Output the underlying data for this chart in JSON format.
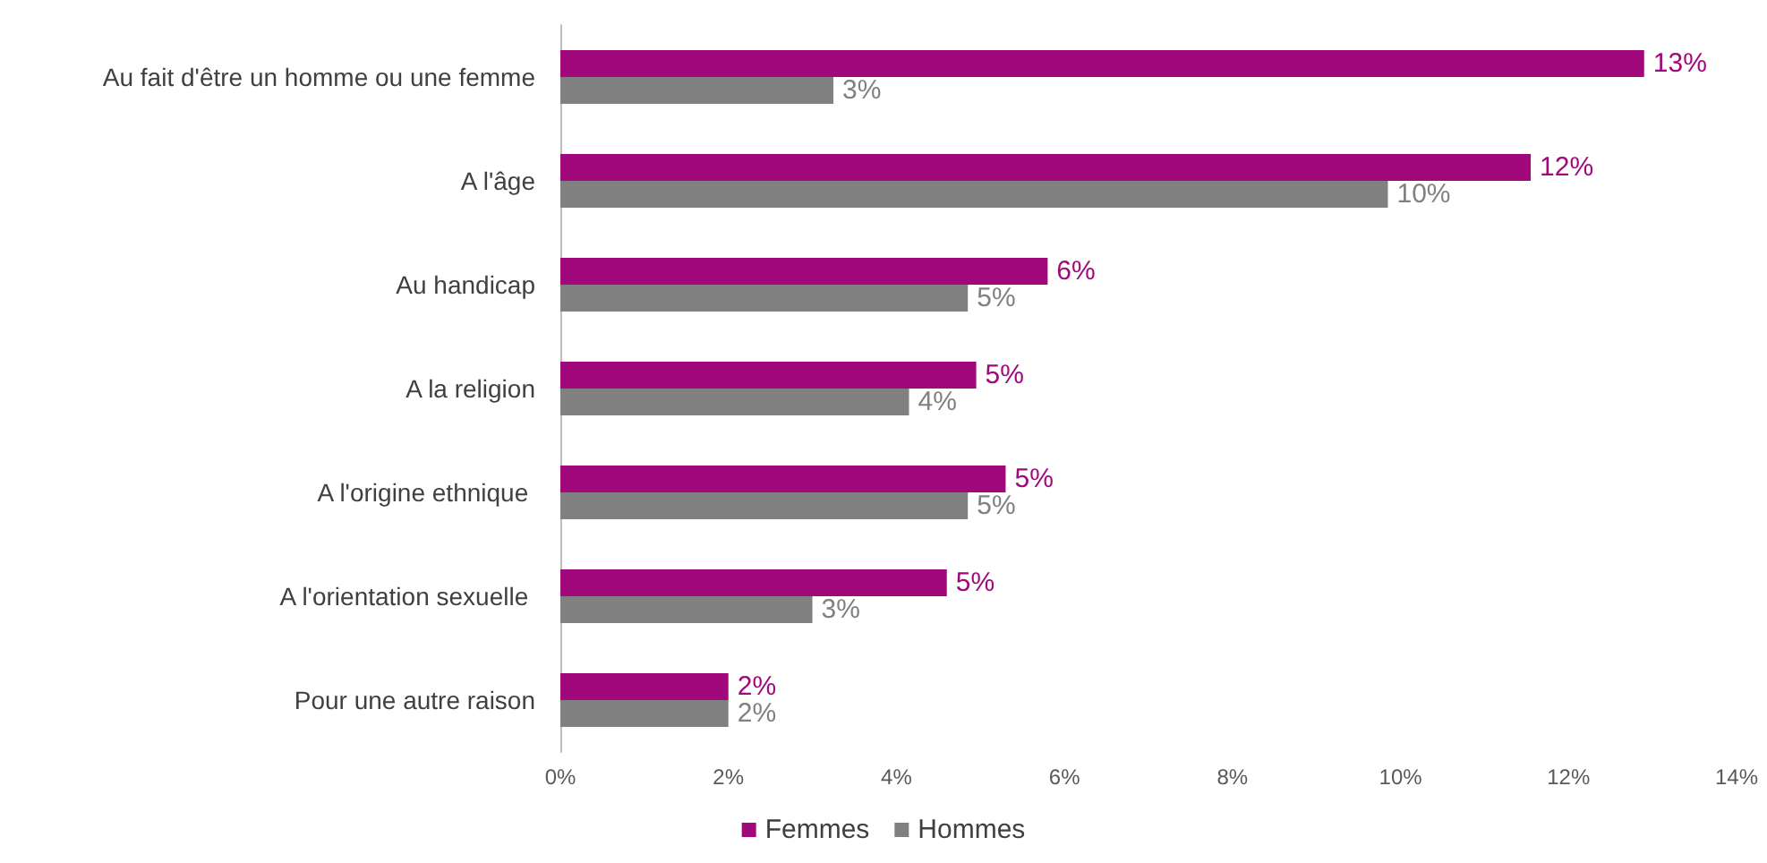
{
  "chart_data": {
    "type": "bar",
    "orientation": "horizontal",
    "categories": [
      "Au fait d'être un homme ou une femme",
      "A l'âge",
      "Au handicap",
      "A la religion",
      "A l'origine ethnique ",
      "A l'orientation sexuelle ",
      "Pour une autre raison"
    ],
    "series": [
      {
        "name": "Femmes",
        "color": "#a1087c",
        "values": [
          12.9,
          11.55,
          5.8,
          4.95,
          5.3,
          4.6,
          2.0
        ],
        "value_labels": [
          "13%",
          "12%",
          "6%",
          "5%",
          "5%",
          "5%",
          "2%"
        ]
      },
      {
        "name": "Hommes",
        "color": "#808080",
        "values": [
          3.25,
          9.85,
          4.85,
          4.15,
          4.85,
          3.0,
          2.0
        ],
        "value_labels": [
          "3%",
          "10%",
          "5%",
          "4%",
          "5%",
          "3%",
          "2%"
        ]
      }
    ],
    "xlim": [
      0,
      14
    ],
    "xticks": [
      {
        "value": 0,
        "label": "0%"
      },
      {
        "value": 2,
        "label": "2%"
      },
      {
        "value": 4,
        "label": "4%"
      },
      {
        "value": 6,
        "label": "6%"
      },
      {
        "value": 8,
        "label": "8%"
      },
      {
        "value": 10,
        "label": "10%"
      },
      {
        "value": 12,
        "label": "12%"
      },
      {
        "value": 14,
        "label": "14%"
      }
    ],
    "grid": false,
    "legend": "bottom"
  }
}
